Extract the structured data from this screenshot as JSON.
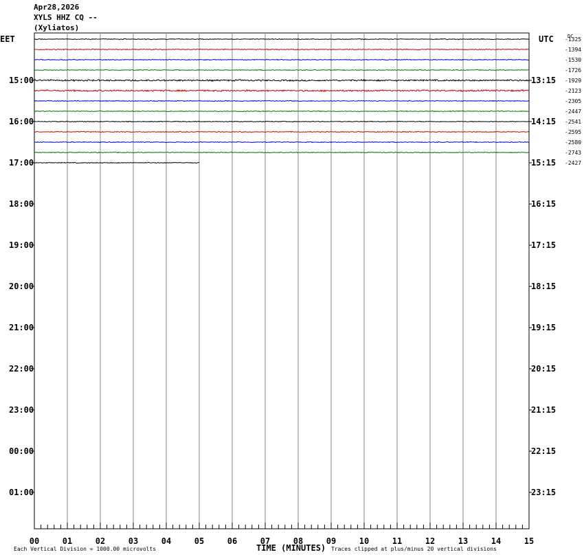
{
  "header": {
    "date": "Apr28,2026",
    "station": "XYLS HHZ CQ --",
    "location": "(Xyliatos)"
  },
  "chart_data": {
    "type": "line",
    "title": "XYLS HHZ CQ --",
    "left_timezone": "EET",
    "right_timezone": "UTC",
    "dc_label": "DC",
    "left_hour_labels": [
      "15:00",
      "16:00",
      "17:00",
      "18:00",
      "19:00",
      "20:00",
      "21:00",
      "22:00",
      "23:00",
      "00:00",
      "01:00"
    ],
    "right_hour_labels": [
      "13:15",
      "14:15",
      "15:15",
      "16:15",
      "17:15",
      "18:15",
      "19:15",
      "20:15",
      "21:15",
      "22:15",
      "23:15"
    ],
    "xlabel": "TIME (MINUTES)",
    "x_ticks": [
      "00",
      "01",
      "02",
      "03",
      "04",
      "05",
      "06",
      "07",
      "08",
      "09",
      "10",
      "11",
      "12",
      "13",
      "14",
      "15"
    ],
    "xlim": [
      0,
      15
    ],
    "trace_colors": [
      "#000000",
      "#cc0000",
      "#0000cc",
      "#007700"
    ],
    "traces": [
      {
        "dc": "-1325",
        "color": "#000000",
        "end_minute": 15,
        "amplitude": 1
      },
      {
        "dc": "-1394",
        "color": "#cc0000",
        "end_minute": 15,
        "amplitude": 1
      },
      {
        "dc": "-1530",
        "color": "#0000cc",
        "end_minute": 15,
        "amplitude": 1
      },
      {
        "dc": "-1726",
        "color": "#007700",
        "end_minute": 15,
        "amplitude": 1
      },
      {
        "dc": "-1929",
        "color": "#000000",
        "end_minute": 15,
        "amplitude": 2
      },
      {
        "dc": "-2123",
        "color": "#cc0000",
        "end_minute": 15,
        "amplitude": 2
      },
      {
        "dc": "-2305",
        "color": "#0000cc",
        "end_minute": 15,
        "amplitude": 1
      },
      {
        "dc": "-2447",
        "color": "#007700",
        "end_minute": 15,
        "amplitude": 1
      },
      {
        "dc": "-2541",
        "color": "#000000",
        "end_minute": 15,
        "amplitude": 1
      },
      {
        "dc": "-2595",
        "color": "#cc0000",
        "end_minute": 15,
        "amplitude": 1
      },
      {
        "dc": "-2580",
        "color": "#0000cc",
        "end_minute": 15,
        "amplitude": 1
      },
      {
        "dc": "-2743",
        "color": "#007700",
        "end_minute": 15,
        "amplitude": 1
      },
      {
        "dc": "-2427",
        "color": "#000000",
        "end_minute": 5,
        "amplitude": 1
      }
    ],
    "footer_scale": "Each Vertical Division = 1000.00 microvolts",
    "footer_clip": "Traces clipped at plus/minus 20 vertical divisions",
    "grid": true
  }
}
